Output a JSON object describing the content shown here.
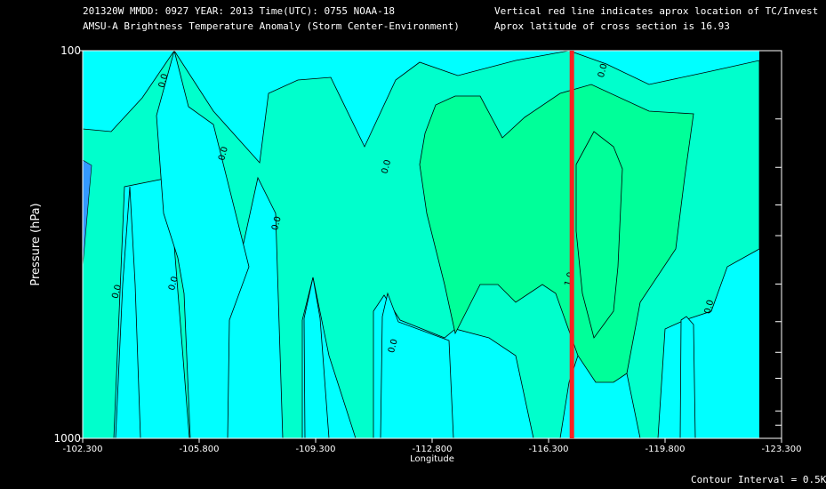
{
  "header": {
    "line1_left": "201320W  MMDD: 0927 YEAR: 2013 Time(UTC): 0755 NOAA-18",
    "line2_left": "AMSU-A Brightness Temperature Anomaly (Storm Center-Environment)",
    "line1_right": "Vertical red line indicates aprox location of TC/Invest",
    "line2_right": "Aprox latitude of cross section is 16.93"
  },
  "footer": {
    "contour_interval": "Contour Interval = 0.5K"
  },
  "colors": {
    "background": "#000000",
    "cyan": "#00ffff",
    "teal": "#00ffcc",
    "green": "#00ff99",
    "blue": "#3399ff",
    "red_line": "#ff2020"
  },
  "chart_data": {
    "type": "heatmap",
    "subtype": "contour cross-section",
    "xlabel": "Longitude",
    "ylabel": "Pressure (hPa)",
    "xlim": [
      -102.3,
      -123.3
    ],
    "ylim": [
      1000,
      100
    ],
    "y_scale": "log",
    "x_ticks": [
      "-102.300",
      "-105.800",
      "-109.300",
      "-112.800",
      "-116.300",
      "-119.800",
      "-123.300"
    ],
    "x_tick_values": [
      -102.3,
      -105.8,
      -109.3,
      -112.8,
      -116.3,
      -119.8,
      -123.3
    ],
    "y_ticks": [
      "100",
      "1000"
    ],
    "y_tick_values": [
      100,
      1000
    ],
    "y_minor_ticks": [
      150,
      200,
      250,
      300,
      400,
      500,
      600,
      700,
      850,
      925
    ],
    "contour_interval_K": 0.5,
    "contour_labels": [
      {
        "text": "0.0",
        "lon": -104.8,
        "p": 120
      },
      {
        "text": "0.0",
        "lon": -106.6,
        "p": 185
      },
      {
        "text": "0.0",
        "lon": -108.2,
        "p": 280
      },
      {
        "text": "0.0",
        "lon": -105.1,
        "p": 400
      },
      {
        "text": "0.0",
        "lon": -103.4,
        "p": 420
      },
      {
        "text": "0.0",
        "lon": -111.5,
        "p": 200
      },
      {
        "text": "0.0",
        "lon": -111.7,
        "p": 580
      },
      {
        "text": "0.0",
        "lon": -118.0,
        "p": 113
      },
      {
        "text": "1.0",
        "lon": -117.0,
        "p": 390
      },
      {
        "text": "0.0",
        "lon": -121.2,
        "p": 460
      }
    ],
    "storm_longitude": -117.0,
    "fill_colors": {
      "below_0": "#00ffff",
      "0_to_0.5": "#00ffcc",
      "0.5_to_1.0": "#00ff99",
      "min": "#3399ff"
    }
  }
}
